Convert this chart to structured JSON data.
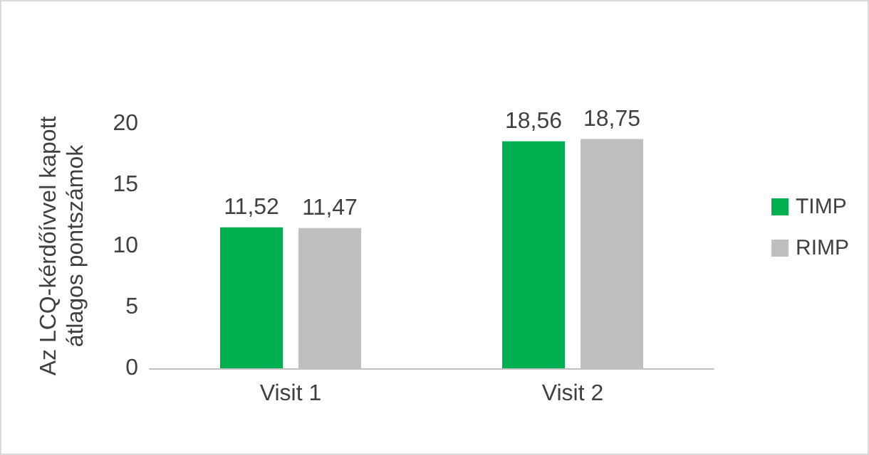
{
  "chart_data": {
    "type": "bar",
    "ylabel": "Az LCQ-kérdőívvel kapott\nátlagos pontszámok",
    "categories": [
      "Visit 1",
      "Visit 2"
    ],
    "series": [
      {
        "name": "TIMP",
        "color": "#00b050",
        "values": [
          11.52,
          18.56
        ],
        "value_labels": [
          "11,52",
          "18,56"
        ]
      },
      {
        "name": "RIMP",
        "color": "#bfbfbf",
        "values": [
          11.47,
          18.75
        ],
        "value_labels": [
          "11,47",
          "18,75"
        ]
      }
    ],
    "ylim": [
      0,
      20
    ],
    "yticks": [
      0,
      5,
      10,
      15,
      20
    ],
    "grid": false,
    "legend": "right"
  }
}
